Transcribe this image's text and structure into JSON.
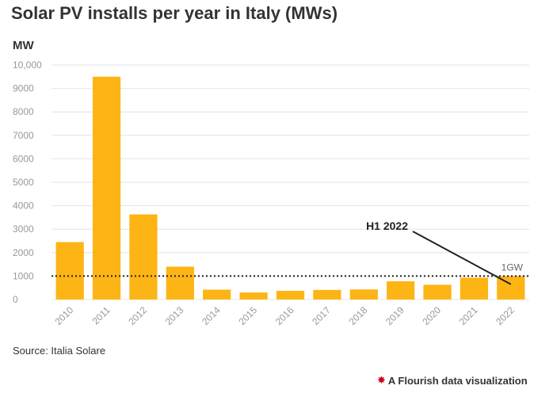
{
  "chart_data": {
    "type": "bar",
    "title": "Solar PV installs per year in Italy (MWs)",
    "ylabel": "MW",
    "xlabel": "",
    "categories": [
      "2010",
      "2011",
      "2012",
      "2013",
      "2014",
      "2015",
      "2016",
      "2017",
      "2018",
      "2019",
      "2020",
      "2021",
      "2022"
    ],
    "values": [
      2450,
      9500,
      3630,
      1400,
      420,
      300,
      370,
      410,
      430,
      780,
      630,
      930,
      1000
    ],
    "ylim": [
      0,
      10000
    ],
    "yticks": [
      {
        "value": 0,
        "label": "0"
      },
      {
        "value": 1000,
        "label": "1000"
      },
      {
        "value": 2000,
        "label": "2000"
      },
      {
        "value": 3000,
        "label": "3000"
      },
      {
        "value": 4000,
        "label": "4000"
      },
      {
        "value": 5000,
        "label": "5000"
      },
      {
        "value": 6000,
        "label": "6000"
      },
      {
        "value": 7000,
        "label": "7000"
      },
      {
        "value": 8000,
        "label": "8000"
      },
      {
        "value": 9000,
        "label": "9000"
      },
      {
        "value": 10000,
        "label": "10,000"
      }
    ],
    "reference_line": {
      "value": 1000,
      "label": "1GW",
      "style": "dotted"
    },
    "annotations": [
      {
        "text": "H1 2022",
        "target_category": "2022",
        "target_value": 650
      }
    ],
    "grid": true,
    "bar_color": "#fdb515"
  },
  "footer": {
    "source": "Source: Italia Solare",
    "credit": "A Flourish data visualization"
  }
}
